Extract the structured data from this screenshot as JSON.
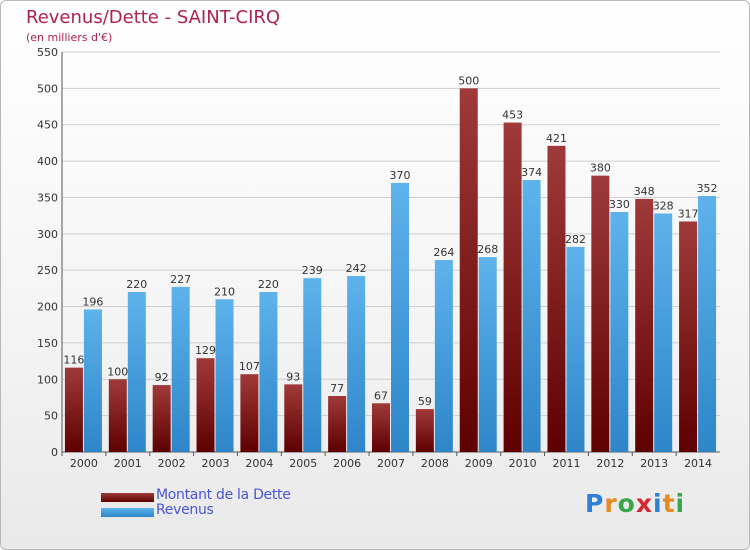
{
  "chart_data": {
    "type": "bar",
    "title": "Revenus/Dette - SAINT-CIRQ",
    "subtitle": "(en milliers d'€)",
    "categories": [
      "2000",
      "2001",
      "2002",
      "2003",
      "2004",
      "2005",
      "2006",
      "2007",
      "2008",
      "2009",
      "2010",
      "2011",
      "2012",
      "2013",
      "2014"
    ],
    "series": [
      {
        "name": "Montant de la Dette",
        "values": [
          116,
          100,
          92,
          129,
          107,
          93,
          77,
          67,
          59,
          500,
          453,
          421,
          380,
          348,
          317
        ]
      },
      {
        "name": "Revenus",
        "values": [
          196,
          220,
          227,
          210,
          220,
          239,
          242,
          370,
          264,
          268,
          374,
          282,
          330,
          328,
          352
        ]
      }
    ],
    "ylim": [
      0,
      550
    ],
    "yticks": [
      0,
      50,
      100,
      150,
      200,
      250,
      300,
      350,
      400,
      450,
      500,
      550
    ],
    "grid": true,
    "legend": "bottom-left",
    "colors": {
      "dette_dark": "#5e0000",
      "dette_light": "#a03a3a",
      "revenus_dark": "#2e85c8",
      "revenus_light": "#5eb3ec",
      "title": "#b0224e",
      "grid": "#cfcfcf",
      "axis_text": "#333333"
    }
  },
  "legend": {
    "dette_label": "Montant de la Dette",
    "revenus_label": "Revenus"
  },
  "logo": {
    "letters": [
      "P",
      "r",
      "o",
      "x",
      "i",
      "t",
      "i"
    ],
    "colors": [
      "#2f7fd6",
      "#e58a1f",
      "#3aa64a",
      "#d4262c",
      "#2f7fd6",
      "#e58a1f",
      "#3aa64a"
    ]
  }
}
